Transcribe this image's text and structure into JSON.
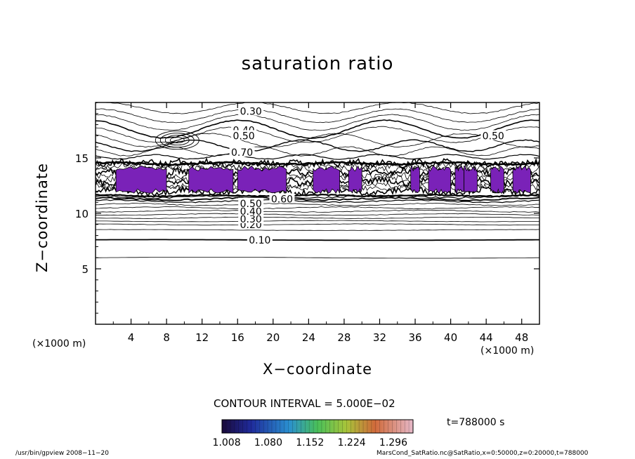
{
  "chart_data": {
    "type": "contour",
    "title": "saturation ratio",
    "xlabel": "X−coordinate",
    "ylabel": "Z−coordinate",
    "x_unit_label": "(×1000 m)",
    "z_unit_label": "(×1000 m)",
    "xlim": [
      0,
      50
    ],
    "ylim": [
      0,
      20
    ],
    "x_ticks": [
      4,
      8,
      12,
      16,
      20,
      24,
      28,
      32,
      36,
      40,
      44,
      48
    ],
    "y_ticks": [
      5,
      10,
      15
    ],
    "x_tick_labels": [
      "4",
      "8",
      "12",
      "16",
      "20",
      "24",
      "28",
      "32",
      "36",
      "40",
      "44",
      "48"
    ],
    "y_tick_labels": [
      "5",
      "10",
      "15"
    ],
    "contour_labels": [
      {
        "text": "0.10",
        "x": 18.5,
        "z": 7.6
      },
      {
        "text": "0.20",
        "x": 17.5,
        "z": 9.0
      },
      {
        "text": "0.30",
        "x": 17.5,
        "z": 9.5
      },
      {
        "text": "0.40",
        "x": 17.5,
        "z": 10.2
      },
      {
        "text": "0.50",
        "x": 17.5,
        "z": 10.9
      },
      {
        "text": "0.60",
        "x": 21.0,
        "z": 11.3
      },
      {
        "text": "0.30",
        "x": 17.5,
        "z": 19.2
      },
      {
        "text": "0.40",
        "x": 16.7,
        "z": 17.5
      },
      {
        "text": "0.50",
        "x": 16.7,
        "z": 17.0
      },
      {
        "text": "0.70",
        "x": 16.5,
        "z": 15.5
      },
      {
        "text": "0.50",
        "x": 44.8,
        "z": 17.0
      }
    ],
    "supersaturated_regions_x_ranges": [
      [
        2.3,
        8.0
      ],
      [
        10.5,
        15.5
      ],
      [
        16.0,
        21.5
      ],
      [
        24.5,
        27.5
      ],
      [
        28.5,
        30.0
      ],
      [
        35.5,
        36.5
      ],
      [
        37.5,
        40.0
      ],
      [
        40.5,
        41.5
      ],
      [
        41.5,
        43.0
      ],
      [
        44.5,
        46.0
      ],
      [
        47.0,
        49.0
      ]
    ],
    "supersaturated_z_range": [
      11.8,
      14.3
    ],
    "colorbar": {
      "min": 1.0,
      "max": 1.33,
      "tick_labels": [
        "1.008",
        "1.080",
        "1.152",
        "1.224",
        "1.296"
      ]
    },
    "contour_interval_text": "CONTOUR INTERVAL = 5.000E−02",
    "time_text": "t=788000  s"
  },
  "footer": {
    "left": "/usr/bin/gpview   2008−11−20",
    "right": "MarsCond_SatRatio.nc@SatRatio,x=0:50000,z=0:20000,t=788000"
  },
  "colors": {
    "fill": "#7a22b8",
    "line": "#000000"
  }
}
